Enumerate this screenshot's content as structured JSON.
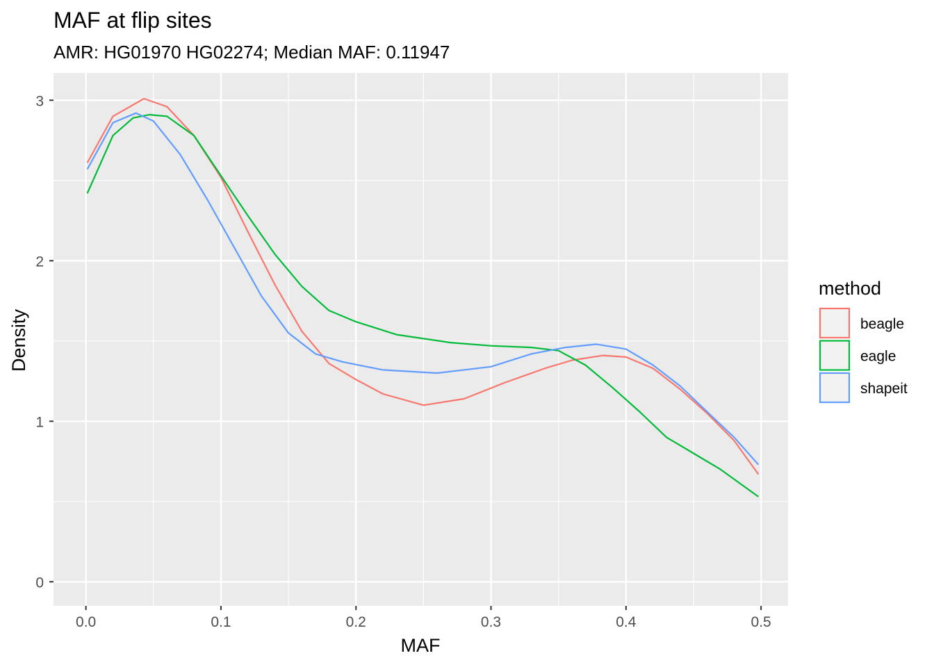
{
  "chart_data": {
    "type": "line",
    "subtype": "density",
    "title": "MAF at flip sites",
    "subtitle": "AMR: HG01970 HG02274; Median MAF: 0.11947",
    "xlabel": "MAF",
    "ylabel": "Density",
    "xlim": [
      -0.024,
      0.52
    ],
    "ylim": [
      -0.15,
      3.17
    ],
    "xticks": [
      0.0,
      0.1,
      0.2,
      0.3,
      0.4,
      0.5
    ],
    "xtick_labels": [
      "0.0",
      "0.1",
      "0.2",
      "0.3",
      "0.4",
      "0.5"
    ],
    "yticks": [
      0,
      1,
      2,
      3
    ],
    "ytick_labels": [
      "0",
      "1",
      "2",
      "3"
    ],
    "grid": true,
    "legend": {
      "title": "method",
      "position": "right"
    },
    "series": [
      {
        "name": "beagle",
        "color": "#F8766D",
        "x": [
          0.001,
          0.02,
          0.043,
          0.06,
          0.08,
          0.1,
          0.12,
          0.14,
          0.16,
          0.18,
          0.2,
          0.22,
          0.25,
          0.28,
          0.31,
          0.34,
          0.36,
          0.383,
          0.4,
          0.42,
          0.44,
          0.46,
          0.48,
          0.498
        ],
        "y": [
          2.61,
          2.9,
          3.01,
          2.96,
          2.78,
          2.52,
          2.18,
          1.85,
          1.56,
          1.36,
          1.26,
          1.17,
          1.1,
          1.14,
          1.24,
          1.33,
          1.38,
          1.41,
          1.4,
          1.33,
          1.2,
          1.05,
          0.88,
          0.67
        ]
      },
      {
        "name": "eagle",
        "color": "#00BA38",
        "x": [
          0.001,
          0.02,
          0.035,
          0.047,
          0.06,
          0.08,
          0.1,
          0.12,
          0.14,
          0.16,
          0.18,
          0.2,
          0.23,
          0.27,
          0.3,
          0.33,
          0.35,
          0.37,
          0.39,
          0.41,
          0.43,
          0.45,
          0.47,
          0.498
        ],
        "y": [
          2.42,
          2.78,
          2.89,
          2.91,
          2.9,
          2.78,
          2.53,
          2.28,
          2.04,
          1.84,
          1.69,
          1.62,
          1.54,
          1.49,
          1.47,
          1.46,
          1.44,
          1.35,
          1.21,
          1.06,
          0.9,
          0.8,
          0.7,
          0.53
        ]
      },
      {
        "name": "shapeit",
        "color": "#619CFF",
        "x": [
          0.001,
          0.02,
          0.037,
          0.05,
          0.07,
          0.09,
          0.11,
          0.13,
          0.15,
          0.17,
          0.19,
          0.22,
          0.26,
          0.3,
          0.33,
          0.355,
          0.378,
          0.4,
          0.42,
          0.44,
          0.46,
          0.48,
          0.498
        ],
        "y": [
          2.57,
          2.86,
          2.92,
          2.87,
          2.66,
          2.38,
          2.08,
          1.78,
          1.55,
          1.42,
          1.37,
          1.32,
          1.3,
          1.34,
          1.42,
          1.46,
          1.48,
          1.45,
          1.35,
          1.22,
          1.06,
          0.9,
          0.73
        ]
      }
    ]
  }
}
